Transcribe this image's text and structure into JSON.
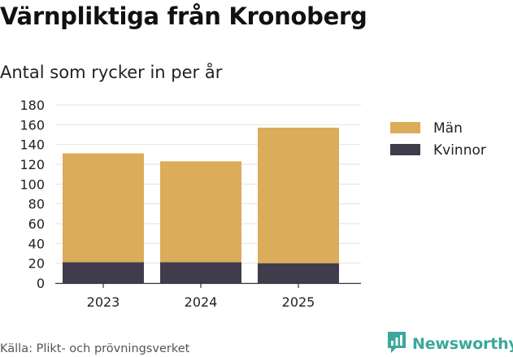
{
  "title": "Värnpliktiga från Kronoberg",
  "subtitle": "Antal som rycker in per år",
  "source": "Källa: Plikt- och prövningsverket",
  "brand": {
    "name": "Newsworthy",
    "icon": "newsworthy-logo-icon",
    "color": "#3aa89a"
  },
  "chart_data": {
    "type": "bar",
    "stacked": true,
    "categories": [
      "2023",
      "2024",
      "2025"
    ],
    "series": [
      {
        "name": "Kvinnor",
        "color": "#403c4c",
        "values": [
          21,
          21,
          20
        ]
      },
      {
        "name": "Män",
        "color": "#dbac59",
        "values": [
          110,
          102,
          137
        ]
      }
    ],
    "legend_order": [
      "Män",
      "Kvinnor"
    ],
    "yticks": [
      "0",
      "20",
      "40",
      "60",
      "80",
      "100",
      "120",
      "140",
      "160",
      "180"
    ],
    "ylim": [
      0,
      180
    ],
    "grid": true,
    "legend_position": "right"
  }
}
